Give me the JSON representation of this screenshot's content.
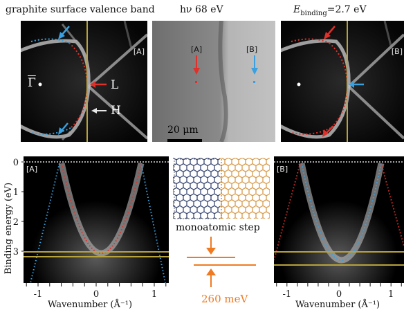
{
  "header": {
    "title": "graphite surface valence band",
    "photon_energy": "hν 68 eV",
    "binding_energy": {
      "symbol_main": "E",
      "symbol_sub": "binding",
      "rest": "=2.7 eV"
    }
  },
  "top_panels": {
    "left": {
      "tag": "[A]",
      "gamma_label": "Γ",
      "l_label": "L",
      "h_label": "H"
    },
    "middle": {
      "tag_a": "[A]",
      "tag_b": "[B]",
      "scale_label": "20 μm"
    },
    "right": {
      "tag": "[B]"
    }
  },
  "bottom_panels": {
    "left": {
      "tag": "[A]"
    },
    "right": {
      "tag": "[B]"
    },
    "y_axis_label": "Binding energy (eV)",
    "x_axis_label": "Wavenumber (Å⁻¹)",
    "y_ticks": [
      "0",
      "1",
      "2",
      "3"
    ],
    "x_ticks": [
      "-1",
      "0",
      "1"
    ]
  },
  "center": {
    "step_label": "monoatomic step",
    "energy_shift": "260 meV"
  },
  "colors": {
    "marker_red": "#e0302a",
    "marker_blue": "#3aa0e0",
    "guide_yellow": "#b8a23a",
    "arrow_orange": "#f07a22",
    "lattice_blue": "#2a3a6a",
    "lattice_orange": "#d79a4a"
  },
  "chart_data": [
    {
      "type": "heatmap",
      "panel": "[A]",
      "xlim": [
        -1.25,
        1.25
      ],
      "ylim": [
        3.6,
        0
      ],
      "band_minimum_binding_energy": 2.85,
      "fermi_level_crossings": [
        -0.8,
        0.85
      ]
    },
    {
      "type": "heatmap",
      "panel": "[B]",
      "xlim": [
        -1.25,
        1.25
      ],
      "ylim": [
        3.6,
        0
      ],
      "band_minimum_binding_energy": 3.1,
      "fermi_level_crossings": [
        -0.8,
        0.85
      ]
    }
  ]
}
